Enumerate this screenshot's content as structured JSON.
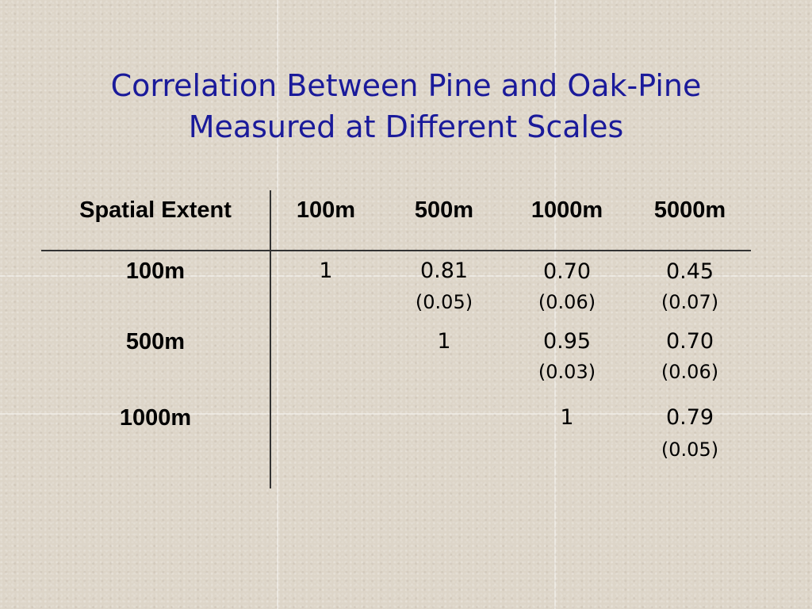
{
  "slide": {
    "title_line1": "Correlation Between Pine and Oak-Pine",
    "title_line2": "Measured at Different Scales"
  },
  "table": {
    "corner_header": "Spatial Extent",
    "columns": [
      "100m",
      "500m",
      "1000m",
      "5000m"
    ],
    "rows": [
      {
        "label": "100m",
        "cells": [
          {
            "value": "1",
            "se": ""
          },
          {
            "value": "0.81",
            "se": "(0.05)"
          },
          {
            "value": "0.70",
            "se": "(0.06)"
          },
          {
            "value": "0.45",
            "se": "(0.07)"
          }
        ]
      },
      {
        "label": "500m",
        "cells": [
          {
            "value": "",
            "se": ""
          },
          {
            "value": "1",
            "se": ""
          },
          {
            "value": "0.95",
            "se": "(0.03)"
          },
          {
            "value": "0.70",
            "se": "(0.06)"
          }
        ]
      },
      {
        "label": "1000m",
        "cells": [
          {
            "value": "",
            "se": ""
          },
          {
            "value": "",
            "se": ""
          },
          {
            "value": "1",
            "se": ""
          },
          {
            "value": "0.79",
            "se": "(0.05)"
          }
        ]
      }
    ]
  }
}
